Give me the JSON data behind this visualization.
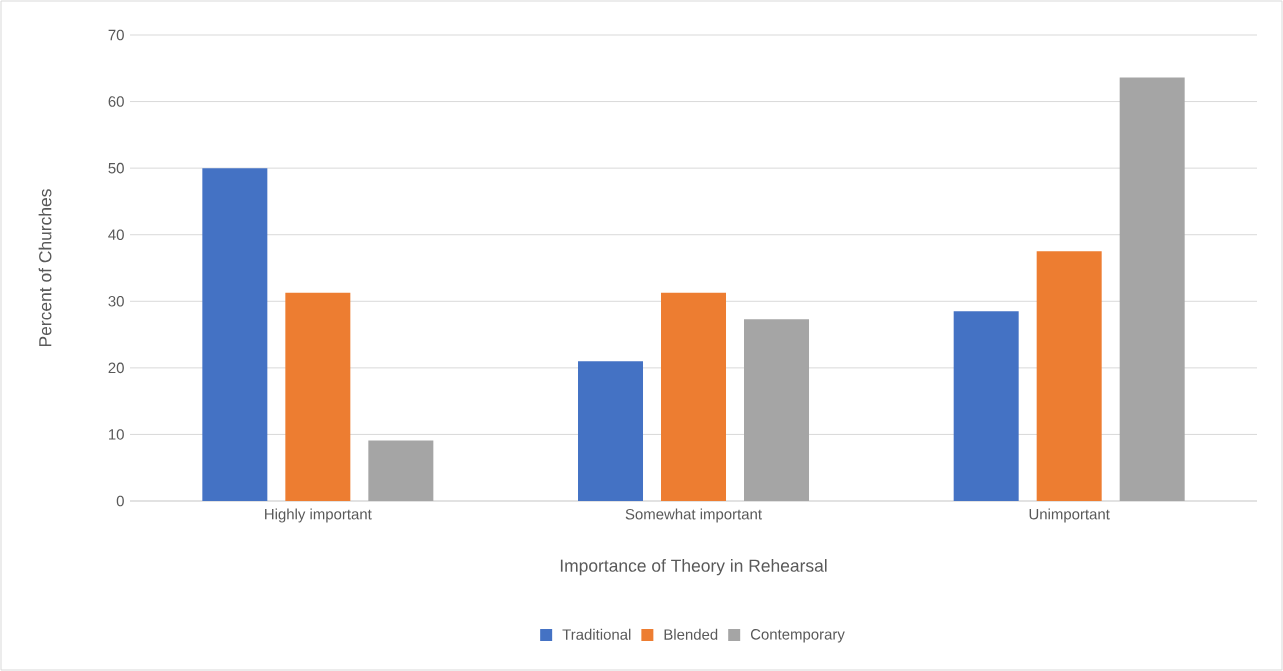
{
  "chart_data": {
    "type": "bar",
    "xlabel": "Importance of Theory in Rehearsal",
    "ylabel": "Percent of Churches",
    "categories": [
      "Highly important",
      "Somewhat important",
      "Unimportant"
    ],
    "series": [
      {
        "name": "Traditional",
        "color": "#4472c4",
        "values": [
          50,
          21,
          28.5
        ]
      },
      {
        "name": "Blended",
        "color": "#ed7d31",
        "values": [
          31.3,
          31.3,
          37.5
        ]
      },
      {
        "name": "Contemporary",
        "color": "#a5a5a5",
        "values": [
          9.1,
          27.3,
          63.6
        ]
      }
    ],
    "ylim": [
      0,
      70
    ],
    "yticks": [
      0,
      10,
      20,
      30,
      40,
      50,
      60,
      70
    ],
    "grid": "y",
    "legend": "bottom"
  }
}
